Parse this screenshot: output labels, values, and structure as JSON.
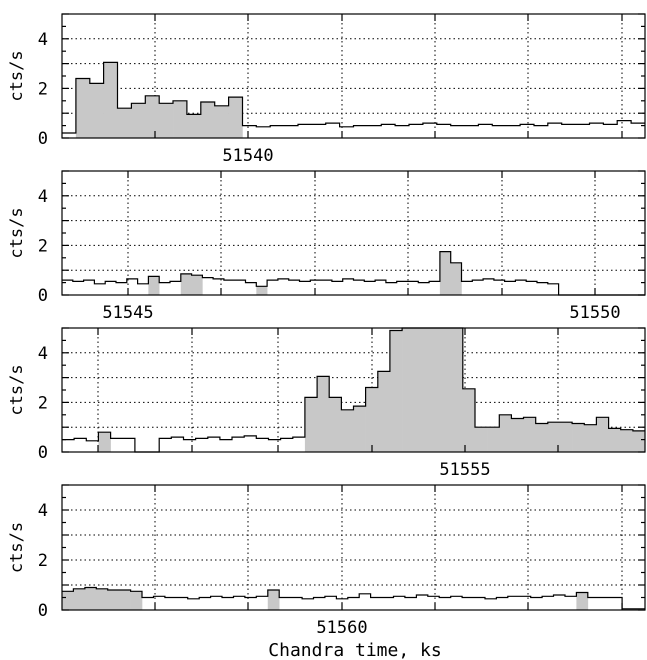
{
  "chart_data": [
    {
      "type": "area",
      "ylabel": "cts/s",
      "ylim": [
        0,
        5
      ],
      "yticks": [
        0,
        2,
        4
      ],
      "grid": true,
      "tick_label": "51540",
      "shade_color": "#c8c8c8",
      "values": [
        0.2,
        2.4,
        2.2,
        3.05,
        1.2,
        1.4,
        1.7,
        1.4,
        1.5,
        0.95,
        1.45,
        1.3,
        1.65,
        0.5,
        0.45,
        0.5,
        0.5,
        0.55,
        0.55,
        0.6,
        0.45,
        0.5,
        0.5,
        0.55,
        0.5,
        0.55,
        0.6,
        0.55,
        0.5,
        0.5,
        0.55,
        0.5,
        0.5,
        0.55,
        0.5,
        0.6,
        0.55,
        0.55,
        0.6,
        0.55,
        0.7,
        0.6
      ],
      "shaded": [
        false,
        true,
        true,
        true,
        true,
        true,
        true,
        true,
        true,
        true,
        true,
        true,
        true,
        false,
        false,
        false,
        false,
        false,
        false,
        false,
        false,
        false,
        false,
        false,
        false,
        false,
        false,
        false,
        false,
        false,
        false,
        false,
        false,
        false,
        false,
        false,
        false,
        false,
        false,
        false,
        false,
        false
      ]
    },
    {
      "type": "area",
      "ylabel": "cts/s",
      "ylim": [
        0,
        5
      ],
      "yticks": [
        0,
        2,
        4
      ],
      "grid": true,
      "tick_label": "51545",
      "tick_label_right": "51550",
      "shade_color": "#c8c8c8",
      "values": [
        0.6,
        0.55,
        0.6,
        0.45,
        0.55,
        0.5,
        0.65,
        0.45,
        0.75,
        0.5,
        0.55,
        0.85,
        0.8,
        0.7,
        0.65,
        0.6,
        0.6,
        0.5,
        0.35,
        0.6,
        0.65,
        0.6,
        0.55,
        0.6,
        0.6,
        0.55,
        0.65,
        0.6,
        0.55,
        0.6,
        0.5,
        0.55,
        0.55,
        0.5,
        0.55,
        1.75,
        1.3,
        0.55,
        0.6,
        0.65,
        0.6,
        0.55,
        0.6,
        0.55,
        0.5,
        0.45,
        0.0,
        0.0,
        0.0,
        0.0,
        0.0,
        0.0,
        0.0,
        0.0
      ],
      "shaded": [
        false,
        false,
        false,
        false,
        false,
        false,
        false,
        false,
        true,
        false,
        false,
        true,
        true,
        false,
        false,
        false,
        false,
        false,
        true,
        false,
        false,
        false,
        false,
        false,
        false,
        false,
        false,
        false,
        false,
        false,
        false,
        false,
        false,
        false,
        false,
        true,
        true,
        false,
        false,
        false,
        false,
        false,
        false,
        false,
        false,
        false,
        false,
        false,
        false,
        false,
        false,
        false,
        false,
        false
      ]
    },
    {
      "type": "area",
      "ylabel": "cts/s",
      "ylim": [
        0,
        5
      ],
      "yticks": [
        0,
        2,
        4
      ],
      "grid": true,
      "tick_label": "51555",
      "shade_color": "#c8c8c8",
      "values": [
        0.5,
        0.55,
        0.45,
        0.8,
        0.55,
        0.55,
        0.0,
        0.0,
        0.55,
        0.6,
        0.5,
        0.55,
        0.6,
        0.5,
        0.6,
        0.65,
        0.55,
        0.5,
        0.55,
        0.6,
        2.2,
        3.05,
        2.2,
        1.7,
        1.85,
        2.6,
        3.25,
        4.9,
        5.0,
        5.0,
        5.0,
        5.0,
        5.0,
        2.55,
        1.0,
        1.0,
        1.5,
        1.35,
        1.4,
        1.15,
        1.2,
        1.2,
        1.15,
        1.1,
        1.4,
        0.95,
        0.9,
        0.85
      ],
      "shaded": [
        false,
        false,
        false,
        true,
        false,
        false,
        false,
        false,
        false,
        false,
        false,
        false,
        false,
        false,
        false,
        false,
        false,
        false,
        false,
        false,
        true,
        true,
        true,
        true,
        true,
        true,
        true,
        true,
        true,
        true,
        true,
        true,
        true,
        true,
        true,
        true,
        true,
        true,
        true,
        true,
        true,
        true,
        true,
        true,
        true,
        true,
        true,
        true
      ]
    },
    {
      "type": "area",
      "ylabel": "cts/s",
      "ylim": [
        0,
        5
      ],
      "yticks": [
        0,
        2,
        4
      ],
      "grid": true,
      "tick_label": "51560",
      "xlabel": "Chandra time, ks",
      "shade_color": "#c8c8c8",
      "values": [
        0.75,
        0.85,
        0.9,
        0.85,
        0.8,
        0.8,
        0.75,
        0.5,
        0.55,
        0.5,
        0.5,
        0.45,
        0.5,
        0.55,
        0.5,
        0.55,
        0.5,
        0.55,
        0.8,
        0.5,
        0.5,
        0.45,
        0.5,
        0.55,
        0.45,
        0.5,
        0.65,
        0.5,
        0.5,
        0.55,
        0.5,
        0.6,
        0.55,
        0.5,
        0.55,
        0.5,
        0.5,
        0.45,
        0.5,
        0.55,
        0.55,
        0.5,
        0.55,
        0.6,
        0.55,
        0.7,
        0.5,
        0.5,
        0.5,
        0.05,
        0.05
      ],
      "shaded": [
        true,
        true,
        true,
        true,
        true,
        true,
        true,
        false,
        false,
        false,
        false,
        false,
        false,
        false,
        false,
        false,
        false,
        false,
        true,
        false,
        false,
        false,
        false,
        false,
        false,
        false,
        false,
        false,
        false,
        false,
        false,
        false,
        false,
        false,
        false,
        false,
        false,
        false,
        false,
        false,
        false,
        false,
        false,
        false,
        false,
        true,
        false,
        false,
        false,
        false,
        false
      ]
    }
  ]
}
